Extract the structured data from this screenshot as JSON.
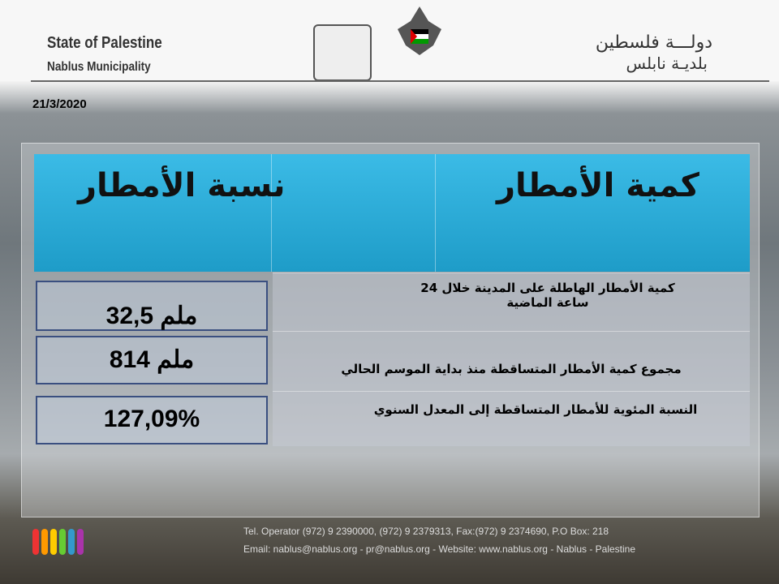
{
  "header": {
    "state_en": "State of Palestine",
    "municipality_en": "Nablus Municipality",
    "state_ar": "دولـــة فلسطين",
    "municipality_ar": "بلديـة نابلس"
  },
  "date": "21/3/2020",
  "table": {
    "col_amount": "كمية الأمطار",
    "col_ratio": "نسبة الأمطار",
    "rows": [
      {
        "label": "كمية الأمطار الهاطلة على المدينة خلال 24 ساعة الماضية",
        "value": "32,5 ملم"
      },
      {
        "label": "مجموع كمية الأمطار المتساقطة منذ بداية الموسم الحالي",
        "value": "814 ملم"
      },
      {
        "label": "النسبة المئوية للأمطار المتساقطة إلى المعدل السنوي",
        "value": "127,09%"
      }
    ]
  },
  "footer": {
    "contact": "Tel. Operator (972) 9 2390000, (972) 9 2379313, Fax:(972) 9 2374690, P.O Box: 218",
    "web": "Email: nablus@nablus.org - pr@nablus.org - Website: www.nablus.org - Nablus - Palestine"
  },
  "colors": {
    "header_blue": "#2aaad8",
    "box_border": "#3a4f80"
  }
}
